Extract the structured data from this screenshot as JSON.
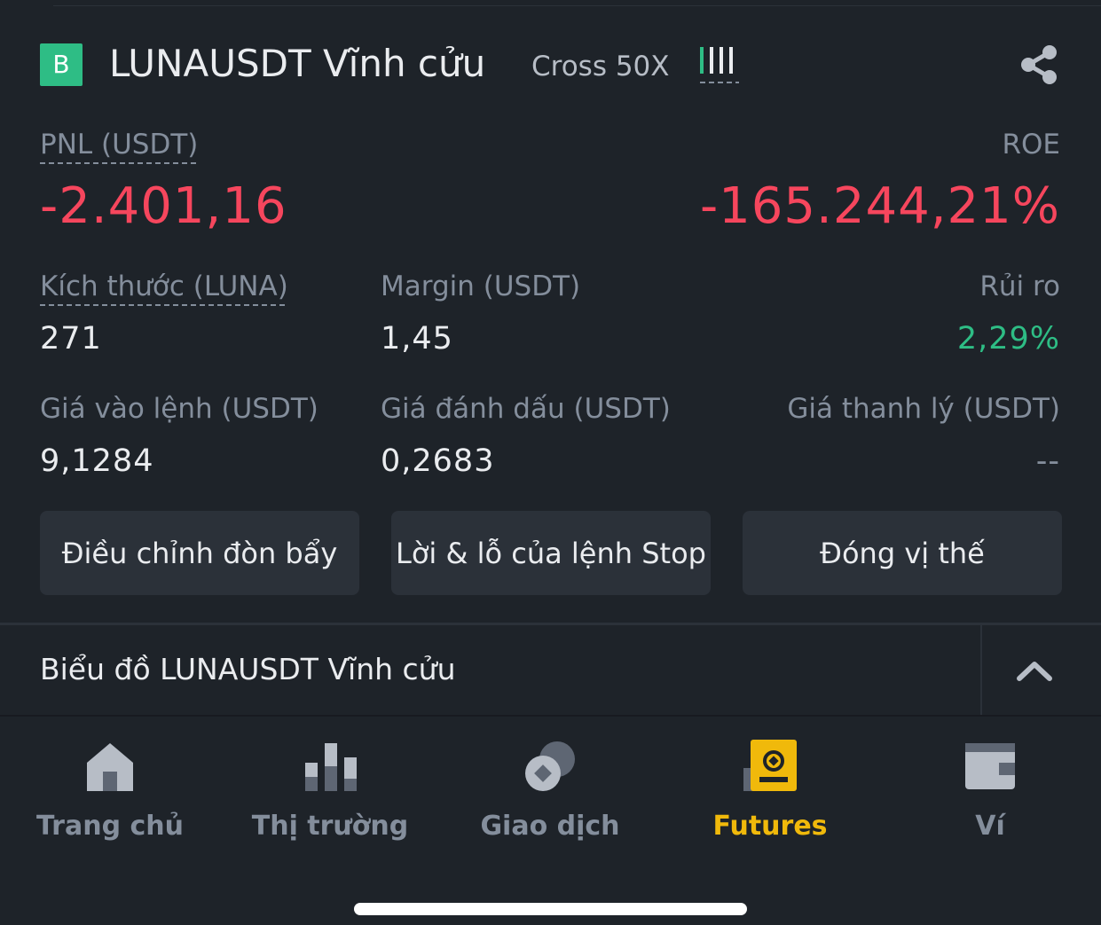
{
  "position": {
    "badge": "B",
    "symbol": "LUNAUSDT Vĩnh cửu",
    "leverage": "Cross 50X",
    "pnl_label": "PNL (USDT)",
    "pnl_value": "-2.401,16",
    "roe_label": "ROE",
    "roe_value": "-165.244,21%",
    "size_label": "Kích thước (LUNA)",
    "size_value": "271",
    "margin_label": "Margin (USDT)",
    "margin_value": "1,45",
    "risk_label": "Rủi ro",
    "risk_value": "2,29%",
    "entry_label": "Giá vào lệnh (USDT)",
    "entry_value": "9,1284",
    "mark_label": "Giá đánh dấu (USDT)",
    "mark_value": "0,2683",
    "liq_label": "Giá thanh lý (USDT)",
    "liq_value": "--"
  },
  "actions": {
    "adjust_leverage": "Điều chỉnh đòn bẩy",
    "tp_sl": "Lời & lỗ của lệnh Stop",
    "close_position": "Đóng vị thế"
  },
  "chart_section": {
    "title": "Biểu đồ LUNAUSDT Vĩnh cửu"
  },
  "nav": {
    "items": [
      {
        "label": "Trang chủ",
        "icon": "home-icon"
      },
      {
        "label": "Thị trường",
        "icon": "markets-icon"
      },
      {
        "label": "Giao dịch",
        "icon": "trade-icon"
      },
      {
        "label": "Futures",
        "icon": "futures-icon"
      },
      {
        "label": "Ví",
        "icon": "wallet-icon"
      }
    ],
    "active_index": 3
  },
  "colors": {
    "background": "#1e2329",
    "negative": "#f6465d",
    "positive": "#2ebd85",
    "accent": "#f0b90b",
    "muted": "#848e9c"
  }
}
